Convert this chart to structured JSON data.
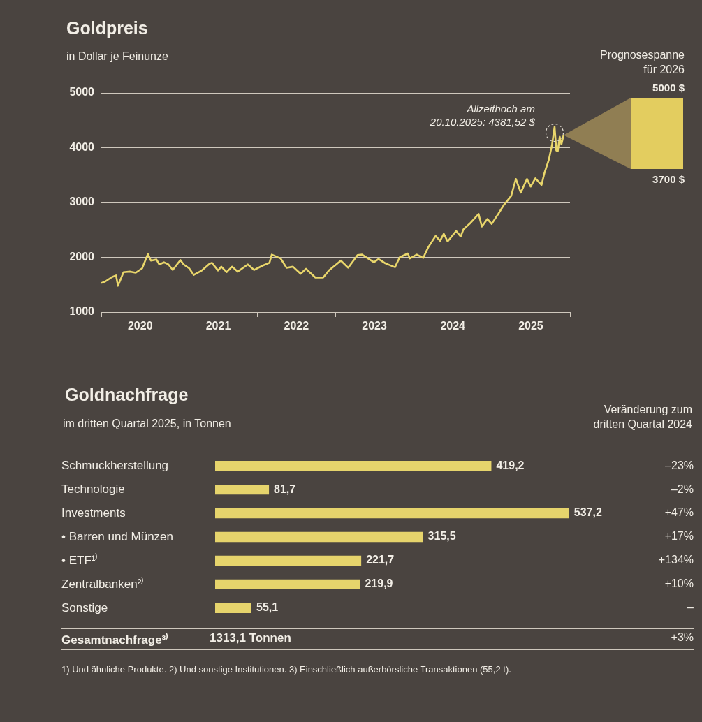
{
  "chart_data": [
    {
      "type": "line",
      "title": "Goldpreis",
      "subtitle": "in Dollar je Feinunze",
      "color": "#e9d66b",
      "marker": "none",
      "grid": "y",
      "x": [
        "2020-01-01",
        "2020-01-20",
        "2020-02-20",
        "2020-03-10",
        "2020-03-19",
        "2020-04-14",
        "2020-05-15",
        "2020-06-10",
        "2020-07-10",
        "2020-08-06",
        "2020-08-20",
        "2020-09-15",
        "2020-09-28",
        "2020-10-20",
        "2020-11-10",
        "2020-11-30",
        "2021-01-05",
        "2021-01-20",
        "2021-02-15",
        "2021-03-08",
        "2021-04-15",
        "2021-05-20",
        "2021-06-01",
        "2021-06-30",
        "2021-07-15",
        "2021-08-09",
        "2021-09-03",
        "2021-09-30",
        "2021-11-16",
        "2021-12-15",
        "2022-01-25",
        "2022-02-25",
        "2022-03-08",
        "2022-04-18",
        "2022-05-16",
        "2022-06-15",
        "2022-07-21",
        "2022-08-15",
        "2022-09-28",
        "2022-10-20",
        "2022-11-03",
        "2022-11-30",
        "2023-01-25",
        "2023-02-28",
        "2023-04-13",
        "2023-05-04",
        "2023-06-29",
        "2023-07-20",
        "2023-08-21",
        "2023-10-05",
        "2023-10-27",
        "2023-12-04",
        "2023-12-13",
        "2024-01-15",
        "2024-02-14",
        "2024-03-08",
        "2024-04-12",
        "2024-05-03",
        "2024-05-20",
        "2024-06-07",
        "2024-07-17",
        "2024-08-07",
        "2024-08-20",
        "2024-09-20",
        "2024-10-30",
        "2024-11-14",
        "2024-12-10",
        "2024-12-30",
        "2025-01-31",
        "2025-02-24",
        "2025-03-31",
        "2025-04-22",
        "2025-05-15",
        "2025-06-13",
        "2025-06-30",
        "2025-07-22",
        "2025-08-20",
        "2025-09-02",
        "2025-09-23",
        "2025-10-08",
        "2025-10-20",
        "2025-10-28",
        "2025-11-04",
        "2025-11-13",
        "2025-11-21",
        "2025-12-01"
      ],
      "values": [
        1530,
        1560,
        1640,
        1670,
        1480,
        1730,
        1740,
        1720,
        1800,
        2060,
        1940,
        1960,
        1870,
        1910,
        1870,
        1770,
        1950,
        1870,
        1800,
        1680,
        1760,
        1880,
        1900,
        1760,
        1830,
        1730,
        1830,
        1740,
        1870,
        1770,
        1850,
        1900,
        2050,
        1980,
        1810,
        1830,
        1700,
        1790,
        1630,
        1630,
        1630,
        1760,
        1940,
        1810,
        2040,
        2050,
        1910,
        1970,
        1890,
        1820,
        2000,
        2070,
        1980,
        2050,
        1990,
        2180,
        2390,
        2300,
        2430,
        2290,
        2480,
        2380,
        2510,
        2620,
        2790,
        2560,
        2700,
        2610,
        2800,
        2950,
        3120,
        3430,
        3180,
        3430,
        3290,
        3440,
        3320,
        3530,
        3780,
        4050,
        4380,
        3950,
        3940,
        4200,
        4060,
        4230
      ],
      "xlim": [
        "2020-01-01",
        "2025-12-31"
      ],
      "xticks": [
        {
          "value": "2020-01-01",
          "label": null
        },
        {
          "value": "2020-07-01",
          "label": "2020"
        },
        {
          "value": "2021-01-01",
          "label": null
        },
        {
          "value": "2021-07-01",
          "label": "2021"
        },
        {
          "value": "2022-01-01",
          "label": null
        },
        {
          "value": "2022-07-01",
          "label": "2022"
        },
        {
          "value": "2023-01-01",
          "label": null
        },
        {
          "value": "2023-07-01",
          "label": "2023"
        },
        {
          "value": "2024-01-01",
          "label": null
        },
        {
          "value": "2024-07-01",
          "label": "2024"
        },
        {
          "value": "2025-01-01",
          "label": null
        },
        {
          "value": "2025-07-01",
          "label": "2025"
        },
        {
          "value": "2025-12-31",
          "label": null
        }
      ],
      "ylim": [
        1000,
        5000
      ],
      "yticks": [
        1000,
        2000,
        3000,
        4000,
        5000
      ],
      "annotations": [
        {
          "text": "Allzeithoch am\n20.10.2025: 4381,52 $",
          "x": "2025-10-20",
          "y": 4380
        },
        "Prognosespanne\nfür 2026",
        "5000 $",
        "3700 $"
      ]
    },
    {
      "type": "bar",
      "orientation": "horizontal",
      "title": "Goldnachfrage",
      "subtitle": "im dritten Quartal 2025, in Tonnen",
      "color": "#e6d46c",
      "categories": [
        "Schmuckherstellung",
        "Technologie",
        "Investments",
        "• Barren und Münzen",
        "• ETF¹⁾",
        "Zentralbanken²⁾",
        "Sonstige"
      ],
      "values": [
        419.2,
        81.7,
        537.2,
        315.5,
        221.7,
        219.9,
        55.1
      ],
      "value_labels": [
        "419,2",
        "81,7",
        "537,2",
        "315,5",
        "221,7",
        "219,9",
        "55,1"
      ],
      "annotations": [
        "Veränderung zum\ndritten Quartal 2024",
        "–23%",
        "–2%",
        "+47%",
        "+17%",
        "+134%",
        "+10%",
        "–",
        "Gesamtnachfrage³⁾",
        "1313,1 Tonnen",
        "+3%",
        "1) Und ähnliche Produkte. 2) Und sonstige Institutionen. 3) Einschließlich außerbörsliche Transaktionen (55,2 t)."
      ]
    }
  ]
}
